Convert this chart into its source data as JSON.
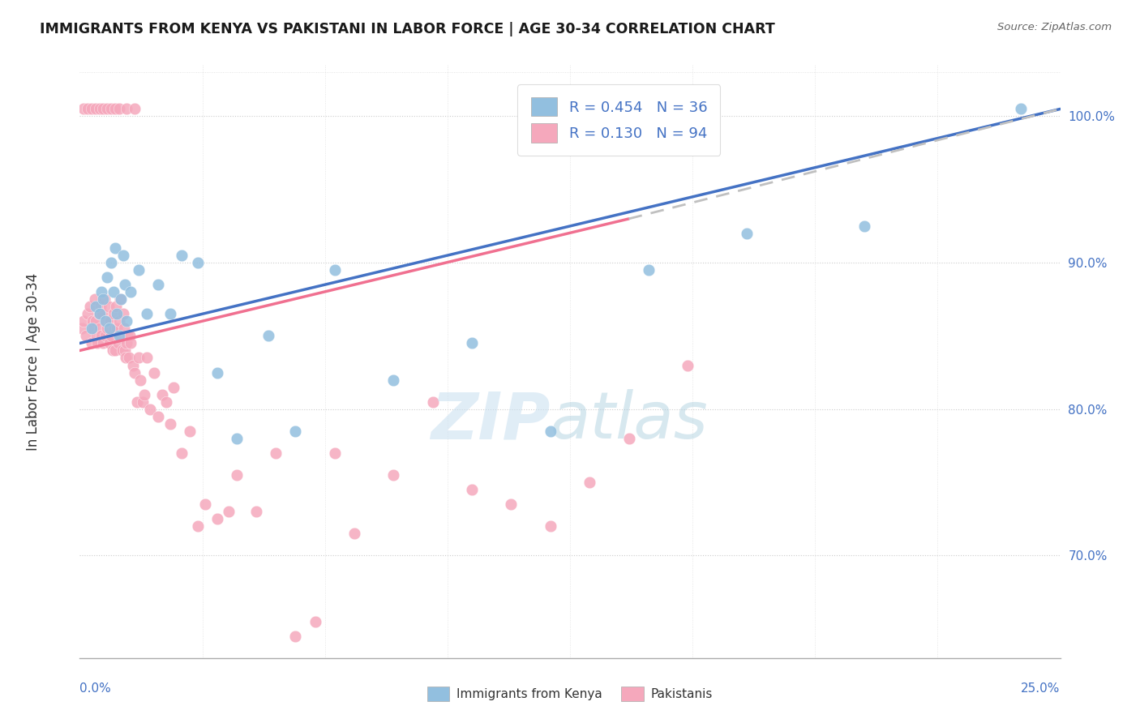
{
  "title": "IMMIGRANTS FROM KENYA VS PAKISTANI IN LABOR FORCE | AGE 30-34 CORRELATION CHART",
  "source": "Source: ZipAtlas.com",
  "ylabel": "In Labor Force | Age 30-34",
  "xlim": [
    0.0,
    25.0
  ],
  "ylim": [
    63.0,
    103.5
  ],
  "kenya_color": "#92bfdf",
  "pak_color": "#f5a8bc",
  "kenya_line_color": "#4472c4",
  "pak_line_color": "#f07090",
  "watermark_zip": "ZIP",
  "watermark_atlas": "atlas",
  "kenya_scatter_x": [
    0.3,
    0.4,
    0.5,
    0.55,
    0.6,
    0.65,
    0.7,
    0.75,
    0.8,
    0.85,
    0.9,
    0.95,
    1.0,
    1.05,
    1.1,
    1.15,
    1.2,
    1.3,
    1.5,
    1.7,
    2.0,
    2.3,
    2.6,
    3.0,
    3.5,
    4.0,
    4.8,
    5.5,
    6.5,
    8.0,
    10.0,
    12.0,
    14.5,
    17.0,
    20.0,
    24.0
  ],
  "kenya_scatter_y": [
    85.5,
    87.0,
    86.5,
    88.0,
    87.5,
    86.0,
    89.0,
    85.5,
    90.0,
    88.0,
    91.0,
    86.5,
    85.0,
    87.5,
    90.5,
    88.5,
    86.0,
    88.0,
    89.5,
    86.5,
    88.5,
    86.5,
    90.5,
    90.0,
    82.5,
    78.0,
    85.0,
    78.5,
    89.5,
    82.0,
    84.5,
    78.5,
    89.5,
    92.0,
    92.5,
    100.5
  ],
  "pak_scatter_x": [
    0.05,
    0.1,
    0.15,
    0.2,
    0.25,
    0.3,
    0.32,
    0.35,
    0.38,
    0.4,
    0.42,
    0.45,
    0.48,
    0.5,
    0.52,
    0.55,
    0.58,
    0.6,
    0.63,
    0.65,
    0.68,
    0.7,
    0.73,
    0.75,
    0.78,
    0.8,
    0.83,
    0.85,
    0.88,
    0.9,
    0.92,
    0.95,
    0.98,
    1.0,
    1.02,
    1.05,
    1.08,
    1.1,
    1.12,
    1.15,
    1.18,
    1.2,
    1.22,
    1.25,
    1.28,
    1.3,
    1.35,
    1.4,
    1.45,
    1.5,
    1.55,
    1.6,
    1.65,
    1.7,
    1.8,
    1.9,
    2.0,
    2.1,
    2.2,
    2.3,
    2.4,
    2.6,
    2.8,
    3.0,
    3.2,
    3.5,
    3.8,
    4.0,
    4.5,
    5.0,
    5.5,
    6.0,
    6.5,
    7.0,
    8.0,
    9.0,
    10.0,
    11.0,
    12.0,
    13.0,
    14.0,
    15.5,
    0.1,
    0.2,
    0.3,
    0.4,
    0.5,
    0.6,
    0.7,
    0.8,
    0.9,
    1.0,
    1.2,
    1.4
  ],
  "pak_scatter_y": [
    85.5,
    86.0,
    85.0,
    86.5,
    87.0,
    84.5,
    86.0,
    85.5,
    87.5,
    86.0,
    85.0,
    84.5,
    86.5,
    85.5,
    87.0,
    85.0,
    86.5,
    84.5,
    87.5,
    85.0,
    86.0,
    85.5,
    87.0,
    84.5,
    86.0,
    85.0,
    84.0,
    86.5,
    85.5,
    84.0,
    87.0,
    85.5,
    84.5,
    86.0,
    87.5,
    85.0,
    84.0,
    86.5,
    85.5,
    84.0,
    83.5,
    84.5,
    85.0,
    83.5,
    85.0,
    84.5,
    83.0,
    82.5,
    80.5,
    83.5,
    82.0,
    80.5,
    81.0,
    83.5,
    80.0,
    82.5,
    79.5,
    81.0,
    80.5,
    79.0,
    81.5,
    77.0,
    78.5,
    72.0,
    73.5,
    72.5,
    73.0,
    75.5,
    73.0,
    77.0,
    64.5,
    65.5,
    77.0,
    71.5,
    75.5,
    80.5,
    74.5,
    73.5,
    72.0,
    75.0,
    78.0,
    83.0,
    100.5,
    100.5,
    100.5,
    100.5,
    100.5,
    100.5,
    100.5,
    100.5,
    100.5,
    100.5,
    100.5,
    100.5
  ],
  "kenya_line_x0": 0.0,
  "kenya_line_y0": 84.5,
  "kenya_line_x1": 25.0,
  "kenya_line_y1": 100.5,
  "pak_line_x0": 0.0,
  "pak_line_y0": 84.0,
  "pak_line_x1": 14.0,
  "pak_line_y1": 93.0,
  "pak_dash_x0": 14.0,
  "pak_dash_y0": 93.0,
  "pak_dash_x1": 25.0,
  "pak_dash_y1": 100.5
}
